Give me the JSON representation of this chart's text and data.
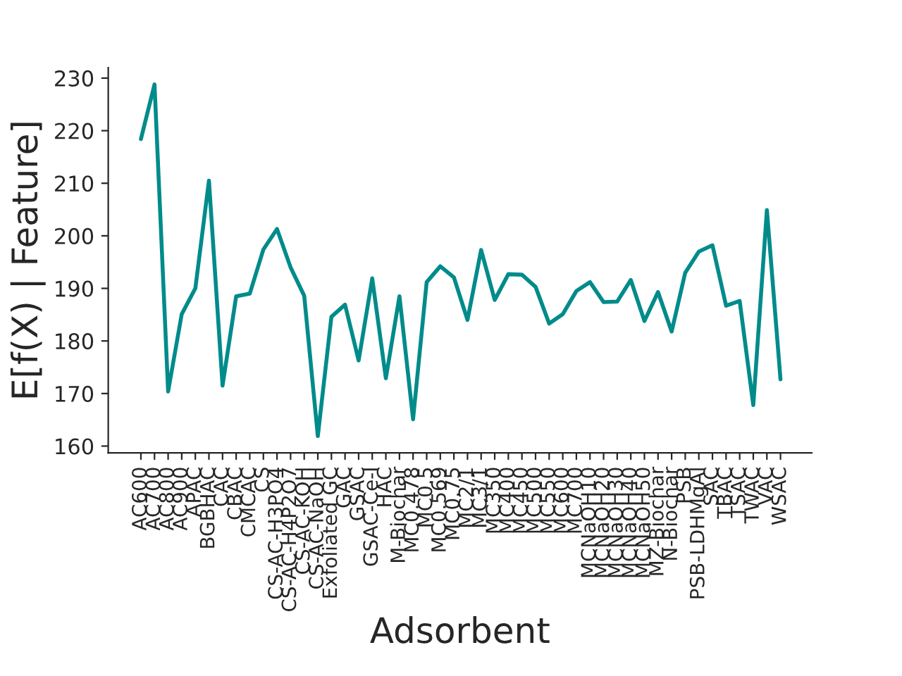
{
  "chart_data": {
    "type": "line",
    "xlabel": "Adsorbent",
    "ylabel": "E[f(X) | Feature]",
    "categories": [
      "AC600",
      "AC700",
      "AC800",
      "AC900",
      "APAC",
      "BGBHAC",
      "CAC",
      "CBAC",
      "CMCAC",
      "CS",
      "CS-AC-H3PO4",
      "CS-AC-H4P2O7",
      "CS-AC-KOH",
      "CS-AC-NaOH",
      "Exfoliated GC",
      "GAC",
      "GSAC",
      "GSAC-Ce-I",
      "HAC",
      "M-Biochar",
      "MC0.478",
      "MC0.5",
      "MC0.569",
      "MC0.75",
      "MC2/1",
      "MC3/1",
      "MC350",
      "MC400",
      "MC450",
      "MC500",
      "MC550",
      "MC600",
      "MC700",
      "MCNaOH10",
      "MCNaOH20",
      "MCNaOH30",
      "MCNaOH40",
      "MCNaOH50",
      "MZ-Biochar",
      "N-Biochar",
      "PSB",
      "PSB-LDHMgAl",
      "SAC",
      "TBAC",
      "TSAC",
      "TWAC",
      "VAC",
      "WSAC"
    ],
    "series": [
      {
        "color": "#008b8b",
        "values": [
          218.4,
          228.8,
          170.4,
          185.1,
          190.0,
          210.5,
          171.5,
          188.5,
          189.0,
          197.4,
          201.3,
          194.0,
          188.6,
          161.9,
          184.6,
          186.9,
          176.3,
          191.9,
          172.9,
          188.5,
          165.1,
          191.2,
          194.2,
          192.1,
          184.0,
          197.3,
          187.8,
          192.7,
          192.6,
          190.3,
          183.3,
          185.1,
          189.5,
          191.2,
          187.4,
          187.5,
          191.6,
          183.8,
          189.3,
          181.8,
          193.0,
          197.0,
          198.2,
          186.7,
          187.6,
          167.8,
          204.9,
          172.7
        ]
      }
    ],
    "ylim": [
      158.7,
      232
    ],
    "yticks": [
      160,
      170,
      180,
      190,
      200,
      210,
      220,
      230
    ],
    "grid": false,
    "legend": false,
    "line_style": "solid",
    "marker": "none"
  }
}
